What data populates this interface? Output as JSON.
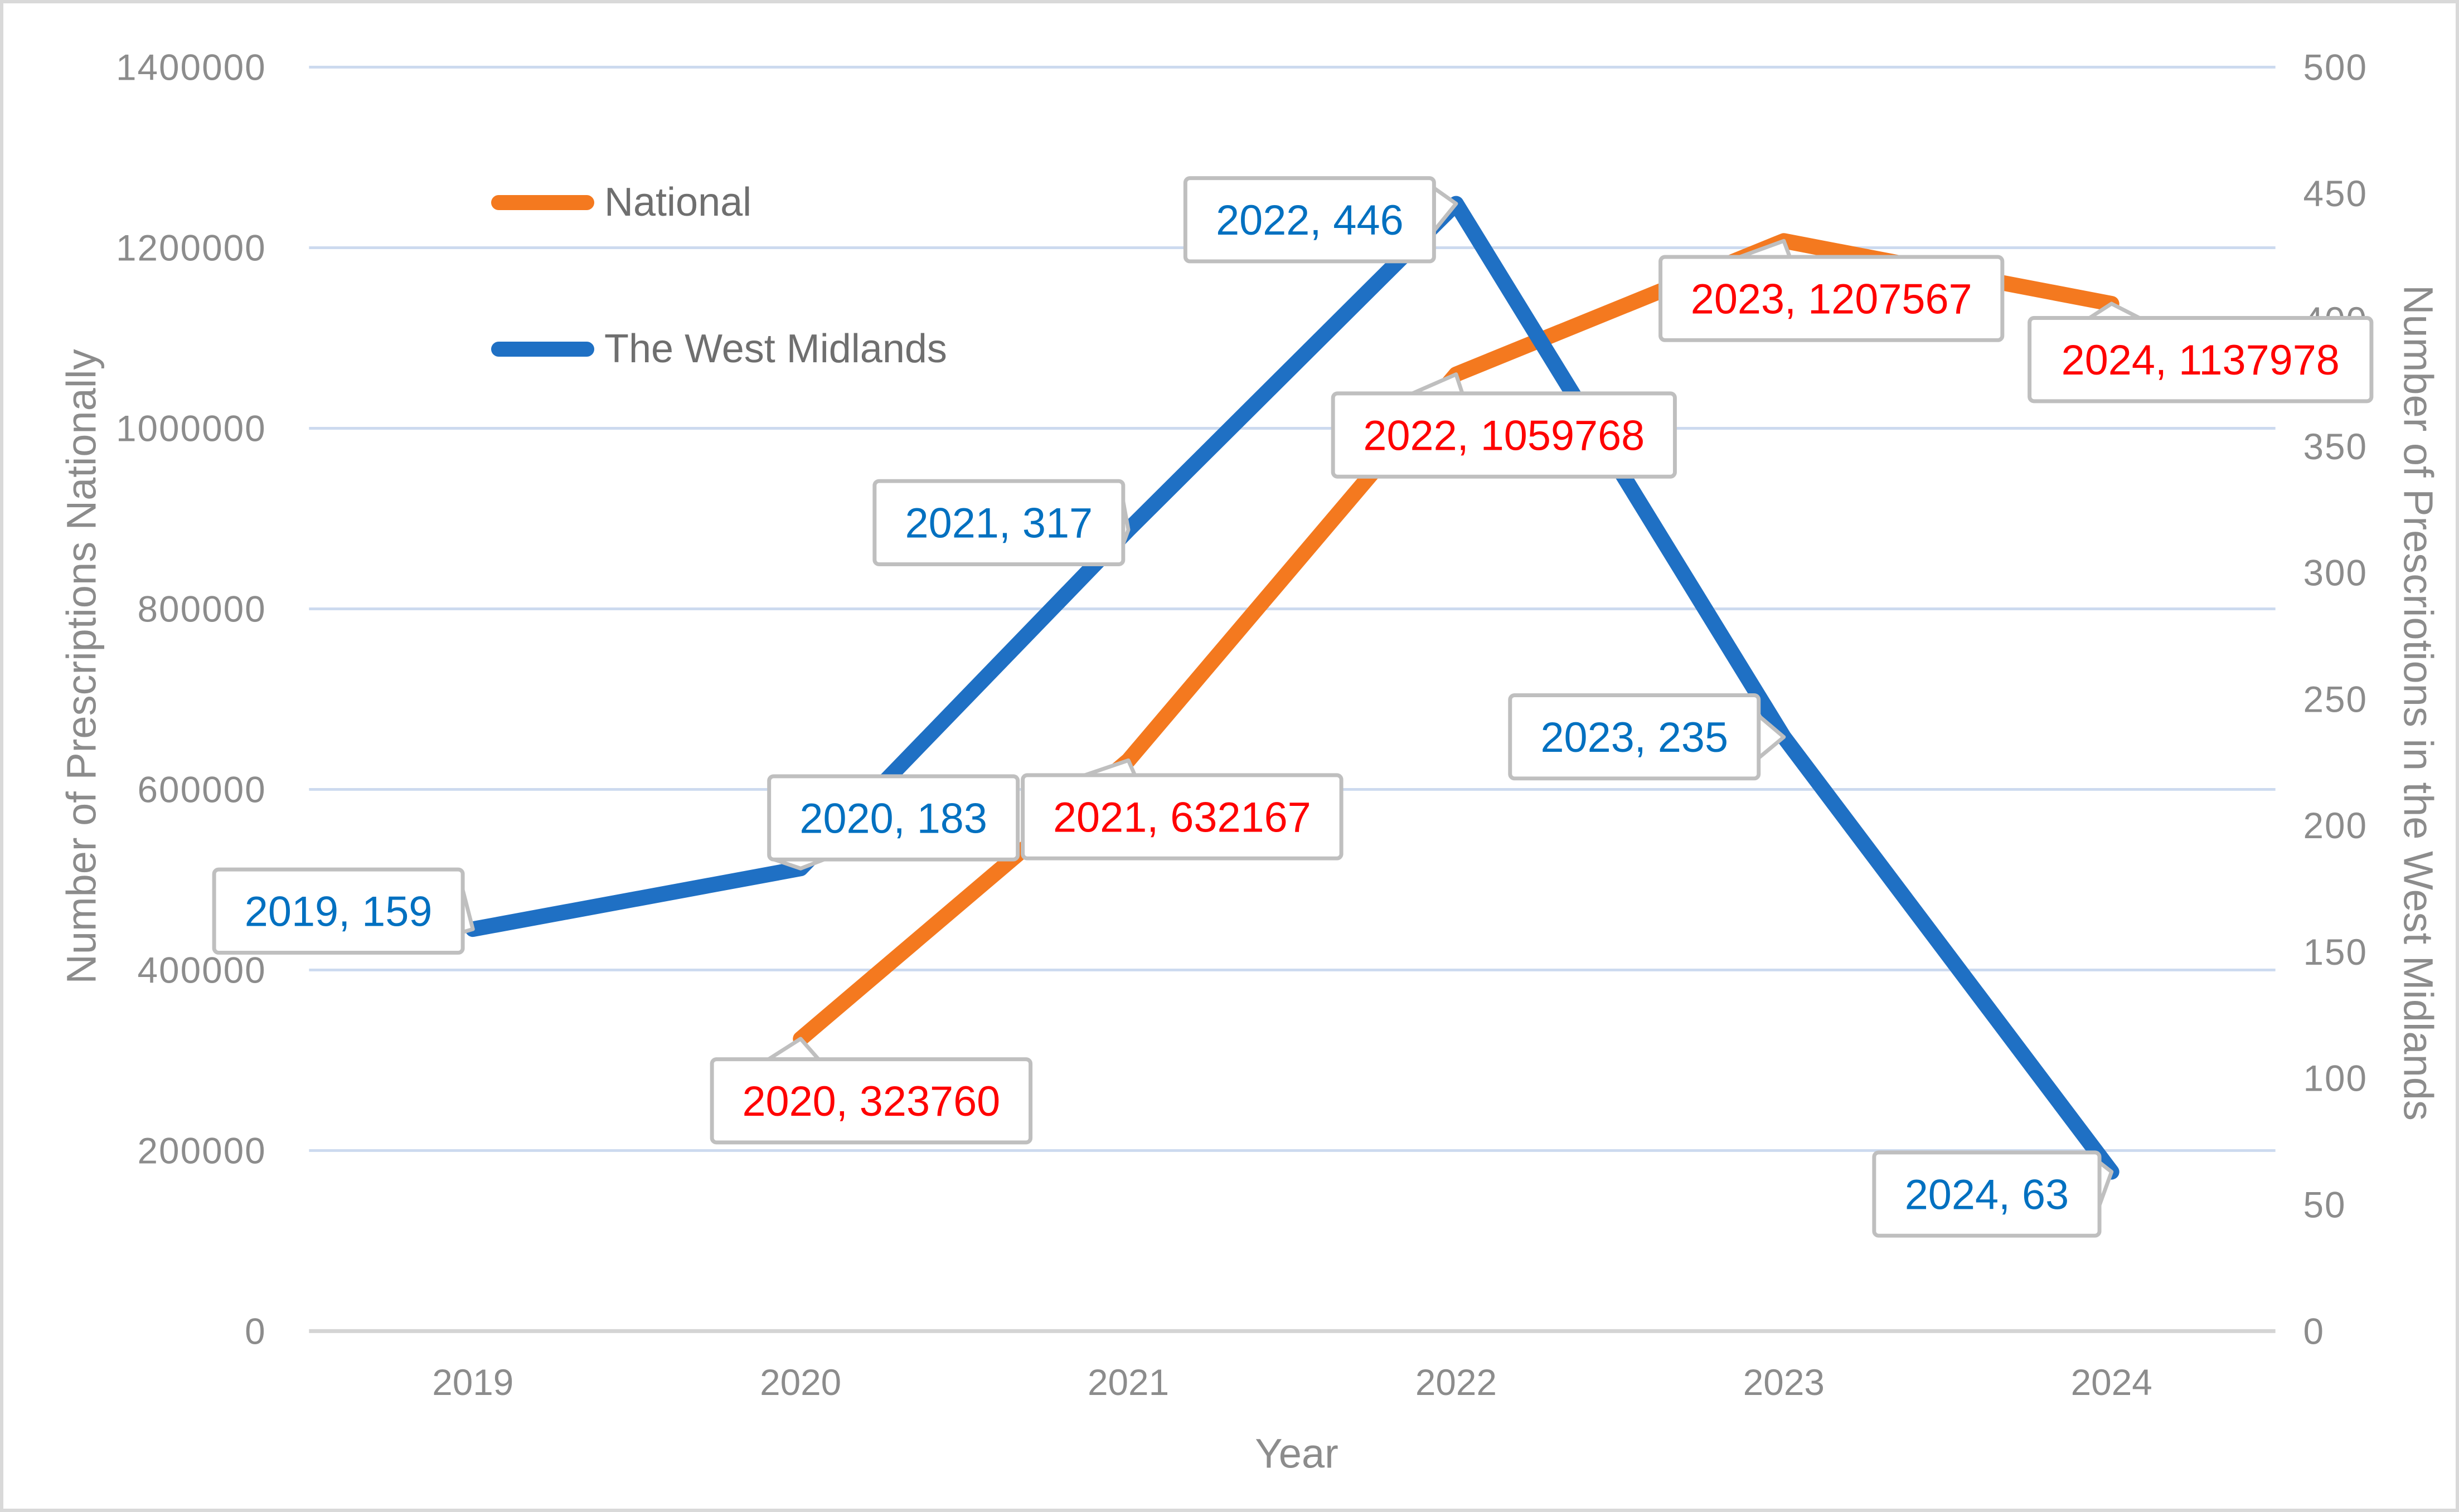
{
  "chart_data": {
    "type": "line",
    "title": "",
    "x": [
      "2019",
      "2020",
      "2021",
      "2022",
      "2023",
      "2024"
    ],
    "xlabel": "Year",
    "ylabel_left": "Number of Prescriptions Nationally",
    "ylabel_right": "Number of Prescriotions in the West Midlands",
    "ylim_left": [
      0,
      1400000
    ],
    "ytick_step_left": 200000,
    "ylim_right": [
      0,
      500
    ],
    "ytick_step_right": 50,
    "grid": true,
    "legend_position": "inside-upper-left",
    "yticks_left": [
      "0",
      "200000",
      "400000",
      "600000",
      "800000",
      "1000000",
      "1200000",
      "1400000"
    ],
    "yticks_right": [
      "0",
      "50",
      "100",
      "150",
      "200",
      "250",
      "300",
      "350",
      "400",
      "450",
      "500"
    ],
    "series": [
      {
        "name": "National",
        "axis": "left",
        "color": "#F4791F",
        "label_color": "#FF0000",
        "points": [
          [
            "2020",
            323760
          ],
          [
            "2021",
            632167
          ],
          [
            "2022",
            1059768
          ],
          [
            "2023",
            1207567
          ],
          [
            "2024",
            1137978
          ]
        ]
      },
      {
        "name": "The West Midlands",
        "axis": "right",
        "color": "#1F70C4",
        "label_color": "#0070C0",
        "points": [
          [
            "2019",
            159
          ],
          [
            "2020",
            183
          ],
          [
            "2021",
            317
          ],
          [
            "2022",
            446
          ],
          [
            "2023",
            235
          ],
          [
            "2024",
            63
          ]
        ]
      }
    ],
    "data_labels": [
      {
        "series": "The West Midlands",
        "x": "2019",
        "text": "2019, 159"
      },
      {
        "series": "The West Midlands",
        "x": "2020",
        "text": "2020, 183"
      },
      {
        "series": "The West Midlands",
        "x": "2021",
        "text": "2021, 317"
      },
      {
        "series": "The West Midlands",
        "x": "2022",
        "text": "2022, 446"
      },
      {
        "series": "The West Midlands",
        "x": "2023",
        "text": "2023, 235"
      },
      {
        "series": "The West Midlands",
        "x": "2024",
        "text": "2024, 63"
      },
      {
        "series": "National",
        "x": "2020",
        "text": "2020, 323760"
      },
      {
        "series": "National",
        "x": "2021",
        "text": "2021, 632167"
      },
      {
        "series": "National",
        "x": "2022",
        "text": "2022, 1059768"
      },
      {
        "series": "National",
        "x": "2023",
        "text": "2023, 1207567"
      },
      {
        "series": "National",
        "x": "2024",
        "text": "2024, 1137978"
      }
    ],
    "colors": {
      "gridline": "#CCDAEF",
      "axis_line": "#D4D4D4",
      "tick_text": "#8C8C8C",
      "callout_border": "#BFBFBF",
      "callout_fill": "#FFFFFF",
      "frame": "#D9D9D9"
    }
  }
}
